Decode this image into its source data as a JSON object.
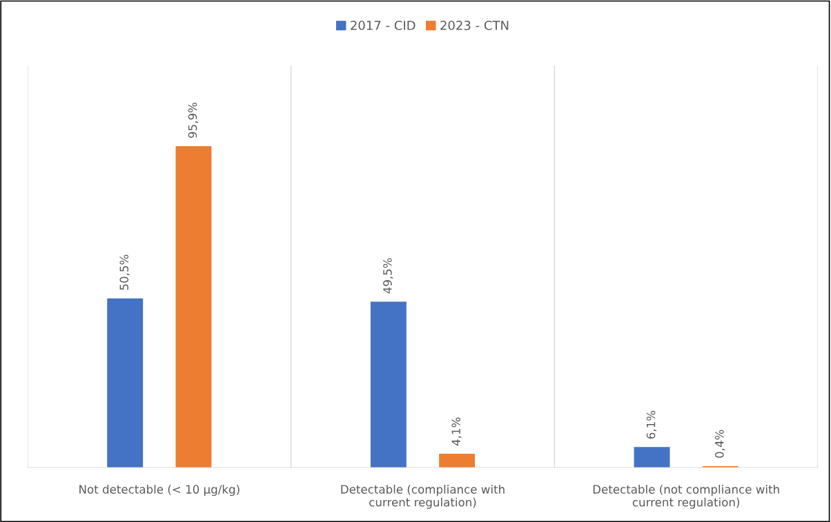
{
  "chart_data": {
    "type": "bar",
    "categories": [
      "Not detectable (< 10 µg/kg)",
      "Detectable (compliance with\ncurrent regulation)",
      "Detectable (not compliance with\ncurrent regulation)"
    ],
    "series": [
      {
        "name": "2017 - CID",
        "color": "#4472c4",
        "values": [
          50.5,
          49.5,
          6.1
        ],
        "value_labels": [
          "50,5%",
          "49,5%",
          "6,1%"
        ]
      },
      {
        "name": "2023 - CTN",
        "color": "#ed7d31",
        "values": [
          95.9,
          4.1,
          0.4
        ],
        "value_labels": [
          "95,9%",
          "4,1%",
          "0,4%"
        ]
      }
    ],
    "ylim": [
      0,
      120
    ],
    "grid": "x",
    "legend": "top",
    "tick_labels": "x"
  }
}
